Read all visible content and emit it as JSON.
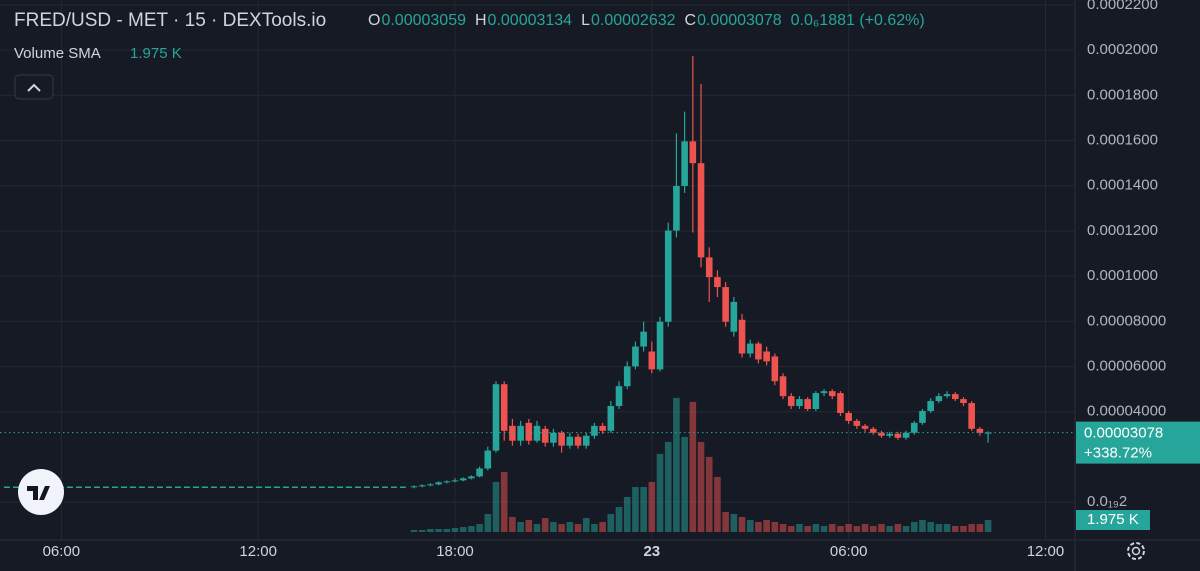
{
  "chart_data": {
    "type": "candlestick",
    "title": "FRED/USD - MET · 15 · DEXTools.io",
    "ohlc_labels": [
      "O",
      "H",
      "L",
      "C"
    ],
    "change": "0.0₆1881 (+0.62%)",
    "volume_sma": {
      "name": "Volume SMA",
      "value": 1975,
      "value_label": "1.975 K"
    },
    "colors": {
      "up": "#26a69a",
      "down": "#ef5350",
      "grid": "#242834",
      "text": "#d1d4dc"
    },
    "x": [
      16.75,
      17,
      17.25,
      17.5,
      17.75,
      18,
      18.25,
      18.5,
      18.75,
      19,
      19.25,
      19.5,
      19.75,
      20,
      20.25,
      20.5,
      20.75,
      21,
      21.25,
      21.5,
      21.75,
      22,
      22.25,
      22.5,
      22.75,
      23,
      23.25,
      23.5,
      23.75,
      24,
      24.25,
      24.5,
      24.75,
      25,
      25.25,
      25.5,
      25.75,
      26,
      26.25,
      26.5,
      26.75,
      27,
      27.25,
      27.5,
      27.75,
      28,
      28.25,
      28.5,
      28.75,
      29,
      29.25,
      29.5,
      29.75,
      30,
      30.25,
      30.5,
      30.75,
      31,
      31.25,
      31.5,
      31.75,
      32,
      32.25,
      32.5,
      32.75,
      33,
      33.25,
      33.5,
      33.75,
      34,
      34.25
    ],
    "open": [
      6.58e-06,
      7.02e-06,
      7.46e-06,
      7.89e-06,
      8.77e-06,
      9.21e-06,
      9.65e-06,
      1.053e-05,
      1.14e-05,
      1.491e-05,
      2.281e-05,
      5.219e-05,
      3.377e-05,
      2.719e-05,
      3.509e-05,
      2.719e-05,
      3.246e-05,
      2.632e-05,
      3.07e-05,
      2.5e-05,
      2.895e-05,
      2.5e-05,
      2.939e-05,
      3.377e-05,
      3.158e-05,
      4.254e-05,
      5.132e-05,
      6.009e-05,
      6.886e-05,
      6.667e-05,
      5.877e-05,
      7.983e-05,
      0.00012018,
      0.00013991,
      0.00015965,
      0.00015,
      0.00010833,
      9.956e-05,
      9.518e-05,
      7.544e-05,
      8.07e-05,
      6.579e-05,
      7.018e-05,
      6.667e-05,
      6.447e-05,
      5.57e-05,
      4.693e-05,
      4.254e-05,
      4.561e-05,
      4.123e-05,
      4.825e-05,
      4.912e-05,
      4.825e-05,
      3.947e-05,
      3.596e-05,
      3.377e-05,
      3.246e-05,
      3.07e-05,
      2.939e-05,
      3.026e-05,
      2.851e-05,
      3.07e-05,
      3.509e-05,
      4.035e-05,
      4.474e-05,
      4.693e-05,
      4.781e-05,
      4.561e-05,
      4.386e-05,
      3.246e-05,
      3.059e-05
    ],
    "high": [
      7.46e-06,
      7.89e-06,
      8.33e-06,
      9.21e-06,
      9.65e-06,
      1.053e-05,
      1.097e-05,
      1.184e-05,
      1.579e-05,
      2.456e-05,
      5.351e-05,
      5.351e-05,
      3.684e-05,
      3.596e-05,
      3.684e-05,
      3.596e-05,
      3.377e-05,
      3.246e-05,
      3.158e-05,
      3.07e-05,
      3.026e-05,
      3.07e-05,
      3.509e-05,
      3.509e-05,
      4.474e-05,
      5.351e-05,
      6.228e-05,
      7.105e-05,
      7.983e-05,
      7.105e-05,
      8.202e-05,
      0.00012369,
      0.00016316,
      0.00017281,
      0.00019737,
      0.00018509,
      0.00011272,
      0.00010263,
      9.737e-05,
      9.079e-05,
      8.333e-05,
      7.193e-05,
      7.105e-05,
      6.886e-05,
      6.579e-05,
      5.702e-05,
      4.825e-05,
      4.693e-05,
      4.649e-05,
      4.912e-05,
      5e-05,
      5e-05,
      4.912e-05,
      4.035e-05,
      3.684e-05,
      3.465e-05,
      3.333e-05,
      3.158e-05,
      3.114e-05,
      3.114e-05,
      3.158e-05,
      3.596e-05,
      4.123e-05,
      4.605e-05,
      4.825e-05,
      4.912e-05,
      4.868e-05,
      4.649e-05,
      4.474e-05,
      3.333e-05,
      3.134e-05
    ],
    "low": [
      6.14e-06,
      6.58e-06,
      7.02e-06,
      7.46e-06,
      8.33e-06,
      8.77e-06,
      9.21e-06,
      1.009e-05,
      1.097e-05,
      1.404e-05,
      2.193e-05,
      2.719e-05,
      2.5e-05,
      2.5e-05,
      2.544e-05,
      2.632e-05,
      2.456e-05,
      2.456e-05,
      2.193e-05,
      2.368e-05,
      2.368e-05,
      2.368e-05,
      2.807e-05,
      3.026e-05,
      3.07e-05,
      4.123e-05,
      5e-05,
      5.877e-05,
      6.667e-05,
      5.702e-05,
      5.789e-05,
      7.763e-05,
      0.00011711,
      0.00013684,
      0.0001193,
      0.00010395,
      8.86e-05,
      9.079e-05,
      7.763e-05,
      7.325e-05,
      6.404e-05,
      6.404e-05,
      6.14e-05,
      6.053e-05,
      5.175e-05,
      4.561e-05,
      4.123e-05,
      4.123e-05,
      4.035e-05,
      4.035e-05,
      4.693e-05,
      4.561e-05,
      3.816e-05,
      3.465e-05,
      3.246e-05,
      3.114e-05,
      2.982e-05,
      2.851e-05,
      2.851e-05,
      2.763e-05,
      2.763e-05,
      2.982e-05,
      3.421e-05,
      3.947e-05,
      4.386e-05,
      4.605e-05,
      4.474e-05,
      4.254e-05,
      3.158e-05,
      2.939e-05,
      2.632e-05
    ],
    "close": [
      7.02e-06,
      7.46e-06,
      7.89e-06,
      8.77e-06,
      9.21e-06,
      9.65e-06,
      1.053e-05,
      1.14e-05,
      1.491e-05,
      2.281e-05,
      5.219e-05,
      3.158e-05,
      2.719e-05,
      3.377e-05,
      2.719e-05,
      3.377e-05,
      2.632e-05,
      3.07e-05,
      2.5e-05,
      2.895e-05,
      2.5e-05,
      2.939e-05,
      3.377e-05,
      3.158e-05,
      4.254e-05,
      5.132e-05,
      6.009e-05,
      6.886e-05,
      7.544e-05,
      5.877e-05,
      7.983e-05,
      0.00012018,
      0.00013991,
      0.00015965,
      0.00015,
      0.00010833,
      9.956e-05,
      9.518e-05,
      7.983e-05,
      8.86e-05,
      6.579e-05,
      7.018e-05,
      6.316e-05,
      6.228e-05,
      5.351e-05,
      4.693e-05,
      4.254e-05,
      4.561e-05,
      4.123e-05,
      4.825e-05,
      4.912e-05,
      4.693e-05,
      3.947e-05,
      3.596e-05,
      3.377e-05,
      3.246e-05,
      3.07e-05,
      2.939e-05,
      3.026e-05,
      2.851e-05,
      3.07e-05,
      3.509e-05,
      4.035e-05,
      4.474e-05,
      4.693e-05,
      4.781e-05,
      4.561e-05,
      4.386e-05,
      3.246e-05,
      3.07e-05,
      3.078e-05
    ],
    "volume": [
      330,
      330,
      495,
      495,
      495,
      660,
      825,
      990,
      1320,
      2970,
      8250,
      9900,
      2475,
      1650,
      1980,
      1320,
      2310,
      1650,
      1320,
      1650,
      1320,
      2310,
      1320,
      1650,
      2970,
      4125,
      5775,
      7425,
      7425,
      8250,
      12870,
      14850,
      22110,
      15675,
      21450,
      14850,
      12375,
      9075,
      3300,
      2970,
      2475,
      1980,
      1650,
      1980,
      1650,
      1320,
      990,
      1320,
      990,
      1320,
      990,
      1320,
      990,
      1320,
      990,
      1320,
      990,
      1320,
      990,
      1320,
      990,
      1650,
      1980,
      1650,
      1320,
      1320,
      990,
      990,
      1320,
      1320,
      1980
    ],
    "volume_ylim": [
      0,
      30000
    ],
    "line": {
      "x": [
        4.25,
        16.5
      ],
      "values": [
        6.6e-06,
        6.6e-06
      ]
    },
    "last_price": 3.078e-05,
    "last_change": "+338.72%",
    "ylim": [
      -1.32e-05,
      0.0002222
    ],
    "yticks": [
      {
        "value": 0.00022,
        "label": "0.0002200"
      },
      {
        "value": 0.0002,
        "label": "0.0002000"
      },
      {
        "value": 0.00018,
        "label": "0.0001800"
      },
      {
        "value": 0.00016,
        "label": "0.0001600"
      },
      {
        "value": 0.00014,
        "label": "0.0001400"
      },
      {
        "value": 0.00012,
        "label": "0.0001200"
      },
      {
        "value": 0.0001,
        "label": "0.0001000"
      },
      {
        "value": 8e-05,
        "label": "0.00008000"
      },
      {
        "value": 6e-05,
        "label": "0.00006000"
      },
      {
        "value": 4e-05,
        "label": "0.00004000"
      },
      {
        "value": 2e-20,
        "label": "0.0₁₉2"
      }
    ],
    "xlim": [
      4.13,
      36.9
    ],
    "xticks": [
      {
        "value": 6,
        "label": "06:00"
      },
      {
        "value": 12,
        "label": "12:00"
      },
      {
        "value": 18,
        "label": "18:00"
      },
      {
        "value": 24,
        "label": "23"
      },
      {
        "value": 30,
        "label": "06:00"
      },
      {
        "value": 36,
        "label": "12:00"
      }
    ],
    "grid": true
  }
}
